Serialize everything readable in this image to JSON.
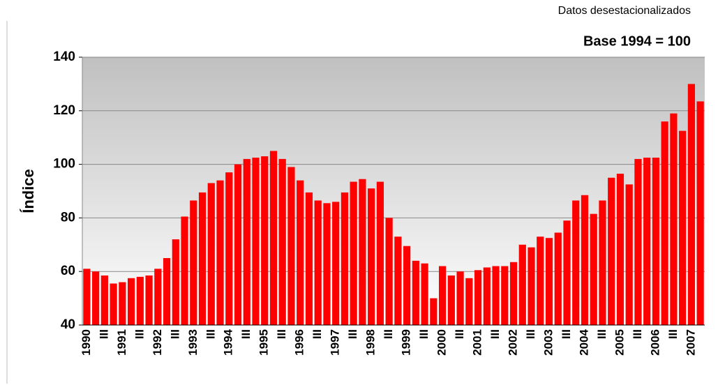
{
  "chart_data": {
    "type": "bar",
    "subtitle": "Datos desestacionalizados",
    "title": "Base 1994 = 100",
    "y_label": "Índice",
    "color": "#ff0000",
    "grid": true,
    "ylim": [
      40,
      140
    ],
    "yticks": [
      40,
      60,
      80,
      100,
      120,
      140
    ],
    "categories": [
      "1990",
      null,
      "III",
      null,
      "1991",
      null,
      "III",
      null,
      "1992",
      null,
      "III",
      null,
      "1993",
      null,
      "III",
      null,
      "1994",
      null,
      "III",
      null,
      "1995",
      null,
      "III",
      null,
      "1996",
      null,
      "III",
      null,
      "1997",
      null,
      "III",
      null,
      "1998",
      null,
      "III",
      null,
      "1999",
      null,
      "III",
      null,
      "2000",
      null,
      "III",
      null,
      "2001",
      null,
      "III",
      null,
      "2002",
      null,
      "III",
      null,
      "2003",
      null,
      "III",
      null,
      "2004",
      null,
      "III",
      null,
      "2005",
      null,
      "III",
      null,
      "2006",
      null,
      "III",
      null,
      "2007",
      null
    ],
    "values": [
      61,
      60,
      58.5,
      55.5,
      56,
      57.5,
      58,
      58.5,
      61,
      65,
      72,
      80.5,
      86.5,
      89.5,
      93,
      94,
      97,
      100,
      102,
      102.5,
      103,
      105,
      102,
      99,
      94,
      89.5,
      86.5,
      85.5,
      86,
      89.5,
      93.5,
      94.5,
      91,
      93.5,
      80,
      73,
      69.5,
      64,
      63,
      50,
      62,
      58.5,
      60,
      57.5,
      60.5,
      61.5,
      62,
      62,
      63.5,
      70,
      69,
      73,
      72.5,
      74.5,
      79,
      86.5,
      88.5,
      81.5,
      86.5,
      95,
      96.5,
      92.5,
      102,
      102.5,
      102.5,
      116,
      119,
      112.5,
      130,
      123.5
    ]
  }
}
